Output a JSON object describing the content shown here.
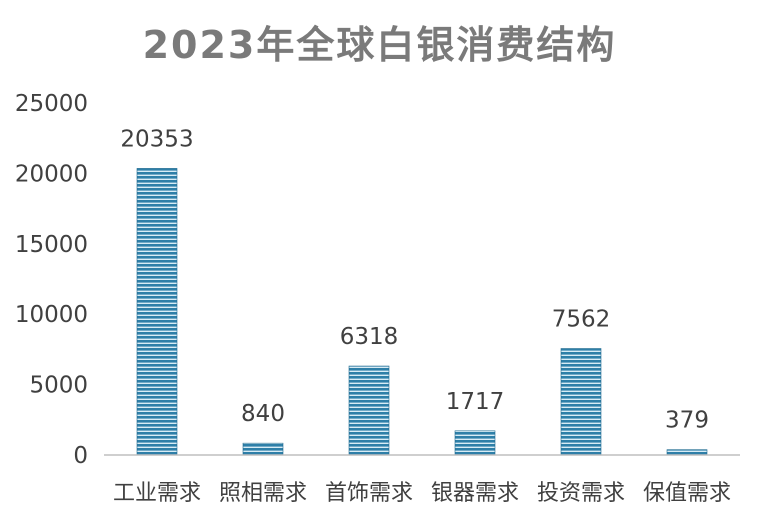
{
  "chart_data": {
    "type": "bar",
    "title": "2023年全球白银消费结构",
    "categories": [
      "工业需求",
      "照相需求",
      "首饰需求",
      "银器需求",
      "投资需求",
      "保值需求"
    ],
    "values": [
      20353,
      840,
      6318,
      1717,
      7562,
      379
    ],
    "ylim": [
      0,
      25000
    ],
    "yticks": [
      0,
      5000,
      10000,
      15000,
      20000,
      25000
    ],
    "grid": false,
    "legend": "none",
    "colors": {
      "bar_fill": "#2e7fa8",
      "bar_stripe": "#ffffff",
      "axis": "#bfbfbf",
      "text": "#404040",
      "title": "#7a7a7a"
    }
  }
}
